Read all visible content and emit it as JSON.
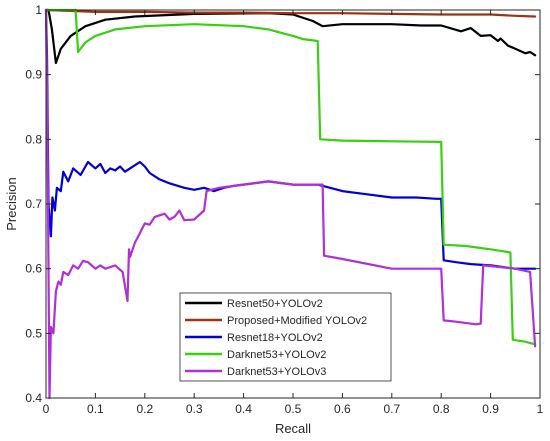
{
  "chart_data": {
    "type": "line",
    "xlabel": "Recall",
    "ylabel": "Precision",
    "xlim": [
      0,
      1
    ],
    "ylim": [
      0.4,
      1
    ],
    "x_ticks": [
      0,
      0.1,
      0.2,
      0.3,
      0.4,
      0.5,
      0.6,
      0.7,
      0.8,
      0.9,
      1
    ],
    "y_ticks": [
      0.4,
      0.5,
      0.6,
      0.7,
      0.8,
      0.9,
      1
    ],
    "x_tick_labels": [
      "0",
      "0.1",
      "0.2",
      "0.3",
      "0.4",
      "0.5",
      "0.6",
      "0.7",
      "0.8",
      "0.9",
      "1"
    ],
    "y_tick_labels": [
      "0.4",
      "0.5",
      "0.6",
      "0.7",
      "0.8",
      "0.9",
      "1"
    ],
    "grid": false,
    "legend_position": "bottom-center",
    "series": [
      {
        "name": "Resnet50+YOLOv2",
        "color": "#000000",
        "points": [
          [
            0,
            1
          ],
          [
            0.005,
            1
          ],
          [
            0.012,
            0.97
          ],
          [
            0.02,
            0.918
          ],
          [
            0.03,
            0.94
          ],
          [
            0.05,
            0.96
          ],
          [
            0.08,
            0.975
          ],
          [
            0.12,
            0.985
          ],
          [
            0.18,
            0.99
          ],
          [
            0.3,
            0.994
          ],
          [
            0.45,
            0.995
          ],
          [
            0.5,
            0.993
          ],
          [
            0.54,
            0.983
          ],
          [
            0.56,
            0.975
          ],
          [
            0.6,
            0.978
          ],
          [
            0.7,
            0.978
          ],
          [
            0.76,
            0.976
          ],
          [
            0.8,
            0.976
          ],
          [
            0.84,
            0.967
          ],
          [
            0.86,
            0.972
          ],
          [
            0.88,
            0.96
          ],
          [
            0.9,
            0.961
          ],
          [
            0.915,
            0.952
          ],
          [
            0.92,
            0.956
          ],
          [
            0.935,
            0.945
          ],
          [
            0.95,
            0.94
          ],
          [
            0.97,
            0.933
          ],
          [
            0.98,
            0.935
          ],
          [
            0.99,
            0.93
          ]
        ]
      },
      {
        "name": "Proposed+Modified YOLOv2",
        "color": "#a0320f",
        "points": [
          [
            0,
            1
          ],
          [
            0.1,
            0.997
          ],
          [
            0.2,
            0.997
          ],
          [
            0.3,
            0.996
          ],
          [
            0.4,
            0.996
          ],
          [
            0.5,
            0.995
          ],
          [
            0.6,
            0.995
          ],
          [
            0.7,
            0.994
          ],
          [
            0.8,
            0.993
          ],
          [
            0.9,
            0.993
          ],
          [
            0.95,
            0.991
          ],
          [
            0.99,
            0.99
          ]
        ]
      },
      {
        "name": "Resnet18+YOLOv2",
        "color": "#0000d8",
        "points": [
          [
            0,
            1
          ],
          [
            0.002,
            0.93
          ],
          [
            0.005,
            0.7
          ],
          [
            0.01,
            0.65
          ],
          [
            0.013,
            0.71
          ],
          [
            0.018,
            0.69
          ],
          [
            0.022,
            0.725
          ],
          [
            0.03,
            0.72
          ],
          [
            0.035,
            0.75
          ],
          [
            0.045,
            0.735
          ],
          [
            0.055,
            0.755
          ],
          [
            0.07,
            0.745
          ],
          [
            0.085,
            0.765
          ],
          [
            0.1,
            0.755
          ],
          [
            0.11,
            0.762
          ],
          [
            0.12,
            0.748
          ],
          [
            0.13,
            0.755
          ],
          [
            0.14,
            0.752
          ],
          [
            0.15,
            0.758
          ],
          [
            0.16,
            0.75
          ],
          [
            0.17,
            0.755
          ],
          [
            0.19,
            0.765
          ],
          [
            0.2,
            0.758
          ],
          [
            0.21,
            0.748
          ],
          [
            0.23,
            0.738
          ],
          [
            0.25,
            0.732
          ],
          [
            0.28,
            0.725
          ],
          [
            0.3,
            0.722
          ],
          [
            0.32,
            0.725
          ],
          [
            0.34,
            0.72
          ],
          [
            0.36,
            0.725
          ],
          [
            0.38,
            0.728
          ],
          [
            0.4,
            0.73
          ],
          [
            0.45,
            0.735
          ],
          [
            0.5,
            0.73
          ],
          [
            0.55,
            0.73
          ],
          [
            0.6,
            0.72
          ],
          [
            0.65,
            0.715
          ],
          [
            0.7,
            0.71
          ],
          [
            0.75,
            0.71
          ],
          [
            0.79,
            0.708
          ],
          [
            0.8,
            0.708
          ],
          [
            0.805,
            0.613
          ],
          [
            0.83,
            0.61
          ],
          [
            0.86,
            0.607
          ],
          [
            0.9,
            0.605
          ],
          [
            0.95,
            0.6
          ],
          [
            0.99,
            0.6
          ]
        ]
      },
      {
        "name": "Darknet53+YOLOv2",
        "color": "#38d010",
        "points": [
          [
            0,
            1
          ],
          [
            0.06,
            1
          ],
          [
            0.065,
            0.935
          ],
          [
            0.08,
            0.95
          ],
          [
            0.1,
            0.96
          ],
          [
            0.14,
            0.97
          ],
          [
            0.2,
            0.975
          ],
          [
            0.3,
            0.978
          ],
          [
            0.4,
            0.975
          ],
          [
            0.45,
            0.97
          ],
          [
            0.5,
            0.96
          ],
          [
            0.52,
            0.955
          ],
          [
            0.55,
            0.952
          ],
          [
            0.555,
            0.8
          ],
          [
            0.6,
            0.798
          ],
          [
            0.7,
            0.797
          ],
          [
            0.8,
            0.796
          ],
          [
            0.805,
            0.637
          ],
          [
            0.85,
            0.635
          ],
          [
            0.9,
            0.63
          ],
          [
            0.94,
            0.625
          ],
          [
            0.945,
            0.49
          ],
          [
            0.97,
            0.487
          ],
          [
            0.99,
            0.483
          ]
        ]
      },
      {
        "name": "Darknet53+YOLOv3",
        "color": "#b030d8",
        "points": [
          [
            0,
            1
          ],
          [
            0.003,
            0.8
          ],
          [
            0.007,
            0.4
          ],
          [
            0.01,
            0.51
          ],
          [
            0.015,
            0.5
          ],
          [
            0.02,
            0.565
          ],
          [
            0.025,
            0.58
          ],
          [
            0.03,
            0.575
          ],
          [
            0.035,
            0.595
          ],
          [
            0.045,
            0.59
          ],
          [
            0.055,
            0.605
          ],
          [
            0.065,
            0.6
          ],
          [
            0.075,
            0.612
          ],
          [
            0.085,
            0.61
          ],
          [
            0.1,
            0.6
          ],
          [
            0.11,
            0.605
          ],
          [
            0.12,
            0.6
          ],
          [
            0.14,
            0.605
          ],
          [
            0.155,
            0.595
          ],
          [
            0.165,
            0.55
          ],
          [
            0.168,
            0.63
          ],
          [
            0.17,
            0.618
          ],
          [
            0.18,
            0.64
          ],
          [
            0.19,
            0.655
          ],
          [
            0.2,
            0.67
          ],
          [
            0.21,
            0.668
          ],
          [
            0.22,
            0.68
          ],
          [
            0.24,
            0.685
          ],
          [
            0.25,
            0.676
          ],
          [
            0.26,
            0.68
          ],
          [
            0.27,
            0.69
          ],
          [
            0.28,
            0.675
          ],
          [
            0.3,
            0.676
          ],
          [
            0.32,
            0.69
          ],
          [
            0.325,
            0.72
          ],
          [
            0.35,
            0.725
          ],
          [
            0.4,
            0.73
          ],
          [
            0.45,
            0.735
          ],
          [
            0.5,
            0.73
          ],
          [
            0.55,
            0.73
          ],
          [
            0.56,
            0.73
          ],
          [
            0.563,
            0.62
          ],
          [
            0.6,
            0.615
          ],
          [
            0.7,
            0.6
          ],
          [
            0.8,
            0.6
          ],
          [
            0.805,
            0.52
          ],
          [
            0.83,
            0.518
          ],
          [
            0.87,
            0.514
          ],
          [
            0.88,
            0.515
          ],
          [
            0.885,
            0.605
          ],
          [
            0.9,
            0.604
          ],
          [
            0.95,
            0.6
          ],
          [
            0.98,
            0.595
          ],
          [
            0.99,
            0.48
          ]
        ]
      }
    ]
  }
}
